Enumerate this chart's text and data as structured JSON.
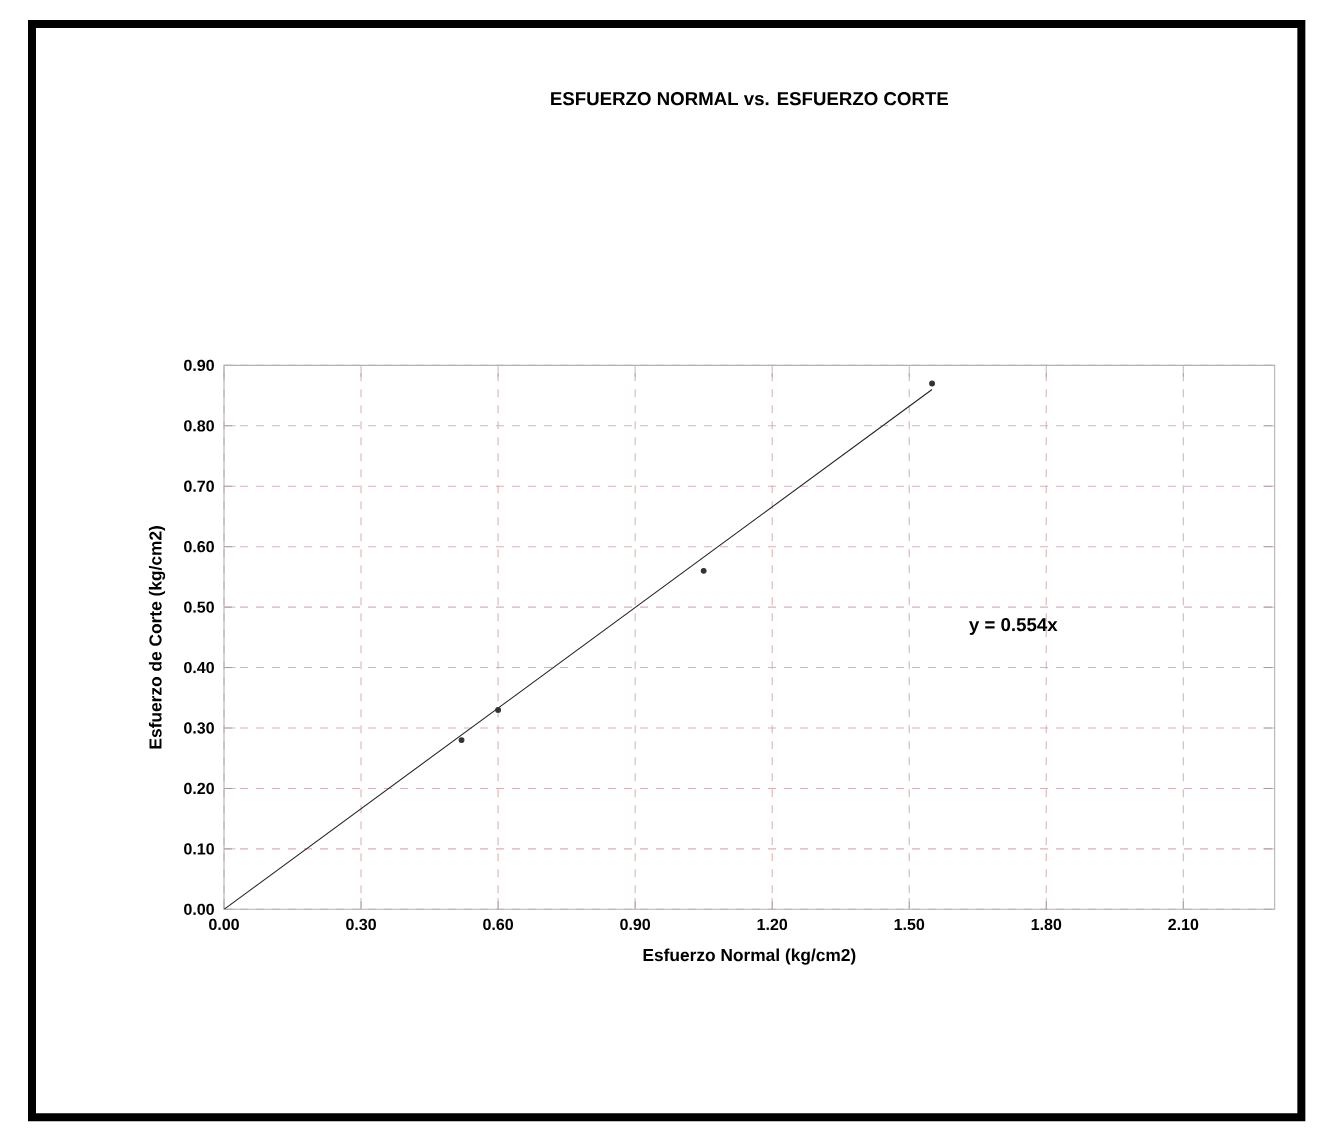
{
  "chart_data": {
    "type": "scatter",
    "title": "ESFUERZO NORMAL vs. ESFUERZO CORTE",
    "xlabel": "Esfuerzo Normal (kg/cm2)",
    "ylabel": "Esfuerzo de Corte (kg/cm2)",
    "series": [
      {
        "color": "#333333",
        "x": [
          0.52,
          0.6,
          1.05,
          1.55
        ],
        "values": [
          0.28,
          0.33,
          0.56,
          0.87
        ],
        "marker": "circle"
      },
      {
        "type": "line",
        "color": "#222222",
        "x": [
          0,
          1.55
        ],
        "values": [
          0,
          0.86
        ],
        "marker": "none",
        "line_style": "solid"
      }
    ],
    "xlim": [
      0,
      2.3
    ],
    "ylim": [
      0,
      0.9
    ],
    "xticks": [
      {
        "value": 0,
        "label": "0.00"
      },
      {
        "value": 0.3,
        "label": "0.30"
      },
      {
        "value": 0.6,
        "label": "0.60"
      },
      {
        "value": 0.9,
        "label": "0.90"
      },
      {
        "value": 1.2,
        "label": "1.20"
      },
      {
        "value": 1.5,
        "label": "1.50"
      },
      {
        "value": 1.8,
        "label": "1.80"
      },
      {
        "value": 2.1,
        "label": "2.10"
      }
    ],
    "yticks": [
      {
        "value": 0,
        "label": "0.00"
      },
      {
        "value": 0.1,
        "label": "0.10"
      },
      {
        "value": 0.2,
        "label": "0.20"
      },
      {
        "value": 0.3,
        "label": "0.30"
      },
      {
        "value": 0.4,
        "label": "0.40"
      },
      {
        "value": 0.5,
        "label": "0.50"
      },
      {
        "value": 0.6,
        "label": "0.60"
      },
      {
        "value": 0.7,
        "label": "0.70"
      },
      {
        "value": 0.8,
        "label": "0.80"
      },
      {
        "value": 0.9,
        "label": "0.90"
      }
    ],
    "grid": true,
    "annotations": [
      "y = 0.554x"
    ]
  }
}
